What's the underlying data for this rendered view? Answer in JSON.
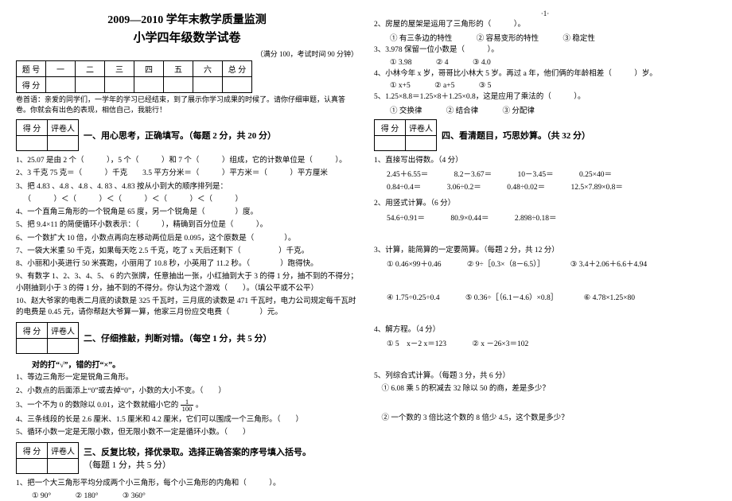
{
  "pagenum": "·1·",
  "header": {
    "title1": "2009—2010 学年末教学质量监测",
    "title2": "小学四年级数学试卷",
    "meta": "（满分 100，考试时间 90 分钟）",
    "score_headers": [
      "题 号",
      "一",
      "二",
      "三",
      "四",
      "五",
      "六",
      "总 分"
    ],
    "score_row_label": "得 分",
    "note": "卷首语：亲爱的同学们，一学年的学习已经结束，到了展示你学习成果的时候了。请你仔细审题，认真答卷。你就会有出色的表现，相信自己，我能行！"
  },
  "small_score": {
    "c1": "得 分",
    "c2": "评卷人"
  },
  "sec1": {
    "title": "一、用心思考，正确填写。（每题 2 分，共 20 分）",
    "q1": "1、25.07 是由 2 个（　　　），5 个（　　　）和 7 个（　　　）组成，它的计数单位是（　　　）。",
    "q2": "2、3 千克 75 克＝（　　　）千克　　3.5 平方分米＝（　　　）平方米＝（　　　）平方厘米",
    "q3": "3、把 4.83 、4.8 、4.8 、4. 83 、4.83 按从小到大的顺序排列是：",
    "q3b": "（　　　）＜（　　　）＜（　　　）＜（　　　）＜（　　　）",
    "q4": "4、一个直角三角形的一个锐角是 65 度，另一个锐角是（　　　　）度。",
    "q5": "5、把 9.4×11 的简便循环小数表示：（　　　），精确到百分位是（　　　）。",
    "q6": "6、一个数扩大 10 倍，小数点再向左移动两位后是 0.095，这个原数是（　　　　）。",
    "q7": "7、一袋大米重 50 千克，如果每天吃 2.5 千克，吃了 x 天后还剩下（　　　　　）千克。",
    "q8": "8、小丽和小英进行 50 米赛跑，小丽用了 10.8 秒，小英用了 11.2 秒。（　　　　）跑得快。",
    "q9": "9、有数字 1、2、3、4、5、 6 的六张牌，任意抽出一张，小红抽到大于 3 的得 1 分，抽不到的不得分；小刚抽到小于 3 的得 1 分，抽不到的不得分。你认为这个游戏（　　）。（填公平或不公平）",
    "q10": "10、赵大爷家的电表二月底的读数是 325 千瓦时，三月底的读数是 471 千瓦时，电力公司规定每千瓦时的电费是 0.45 元，请你帮赵大爷算一算，他家三月份应交电费（　　　　）元。"
  },
  "sec2": {
    "title": "二、仔细推敲，判断对错。（每空 1 分，共 5 分）",
    "sub": "对的打“√”，错的打“×”。",
    "q1": "1、等边三角形一定是锐角三角形。",
    "q2_a": "2、小数点的后面添上“0”或去掉“0”，小数的大小不变。（　　）",
    "q3_a": "3、一个不为 0 的数除以 0.01，这个数就缩小它的 ",
    "q3_b": " 。",
    "q4": "4、三条线段的长是 2.6 厘米、1.5 厘米和 4.2 厘米，它们可以围成一个三角形。（　　）",
    "q5": "5、循环小数一定是无限小数，但无限小数不一定是循环小数。（　　）"
  },
  "sec3": {
    "title": "三、反复比较，择优录取。选择正确答案的序号填入括号。",
    "sub": "（每题 1 分，共 5 分）",
    "q1": "1、把一个大三角形平均分成两个小三角形，每个小三角形的内角和（　　　）。",
    "q1_opts": [
      "① 90°",
      "② 180°",
      "③ 360°"
    ],
    "q2": "2、房屋的屋架是运用了三角形的（　　　）。",
    "q2_opts": [
      "① 有三条边的特性",
      "② 容易变形的特性",
      "③ 稳定性"
    ],
    "q3": "3、3.978 保留一位小数是（　　　）。",
    "q3_opts": [
      "① 3.98",
      "② 4",
      "③ 4.0"
    ],
    "q4": "4、小林今年 x 岁，哥哥比小林大 5 岁。再过 a 年，他们俩的年龄相差（　　　）岁。",
    "q4_opts": [
      "① x+5",
      "② a+5",
      "③ 5"
    ],
    "q5": "5、1.25×8.8＝1.25×8＋1.25×0.8，这是应用了乘法的（　　　）。",
    "q5_opts": [
      "① 交换律",
      "② 结合律",
      "③ 分配律"
    ]
  },
  "sec4": {
    "title": "四、看清题目，巧思妙算。（共 32 分）",
    "p1_title": "1、直接写出得数。（4 分）",
    "p1_r1": [
      "2.45＋6.55＝",
      "8.2－3.67＝",
      "10－3.45＝",
      "0.25×40＝"
    ],
    "p1_r2": [
      "0.84÷0.4＝",
      "3.06÷0.2＝",
      "0.48÷0.02＝",
      "12.5×7.89×0.8＝"
    ],
    "p2_title": "2、用竖式计算。（6 分）",
    "p2_items": [
      "54.6÷0.91＝",
      "80.9×0.44＝",
      "2.898÷0.18＝"
    ],
    "p3_title": "3、计算，能简算的一定要简算。（每题 2 分，共 12 分）",
    "p3_r1": [
      "① 0.46×99＋0.46",
      "② 9÷［0.3×（8－6.5）］",
      "③ 3.4＋2.06＋6.6＋4.94"
    ],
    "p3_r2": [
      "④ 1.75÷0.25÷0.4",
      "⑤ 0.36÷［（6.1－4.6）×0.8］",
      "⑥ 4.78×1.25×80"
    ],
    "p4_title": "4、解方程。（4 分）",
    "p4_items": [
      "① 5　x－2 x＝123",
      "② x －26×3＝102"
    ],
    "p5_title": "5、列综合式计算。（每题 3 分，共 6 分）",
    "p5_q1": "① 6.08 乘 5 的积减去 32 除以 50 的商，差是多少？",
    "p5_q2": "② 一个数的 3 倍比这个数的 8 倍少 4.5，这个数是多少？"
  }
}
